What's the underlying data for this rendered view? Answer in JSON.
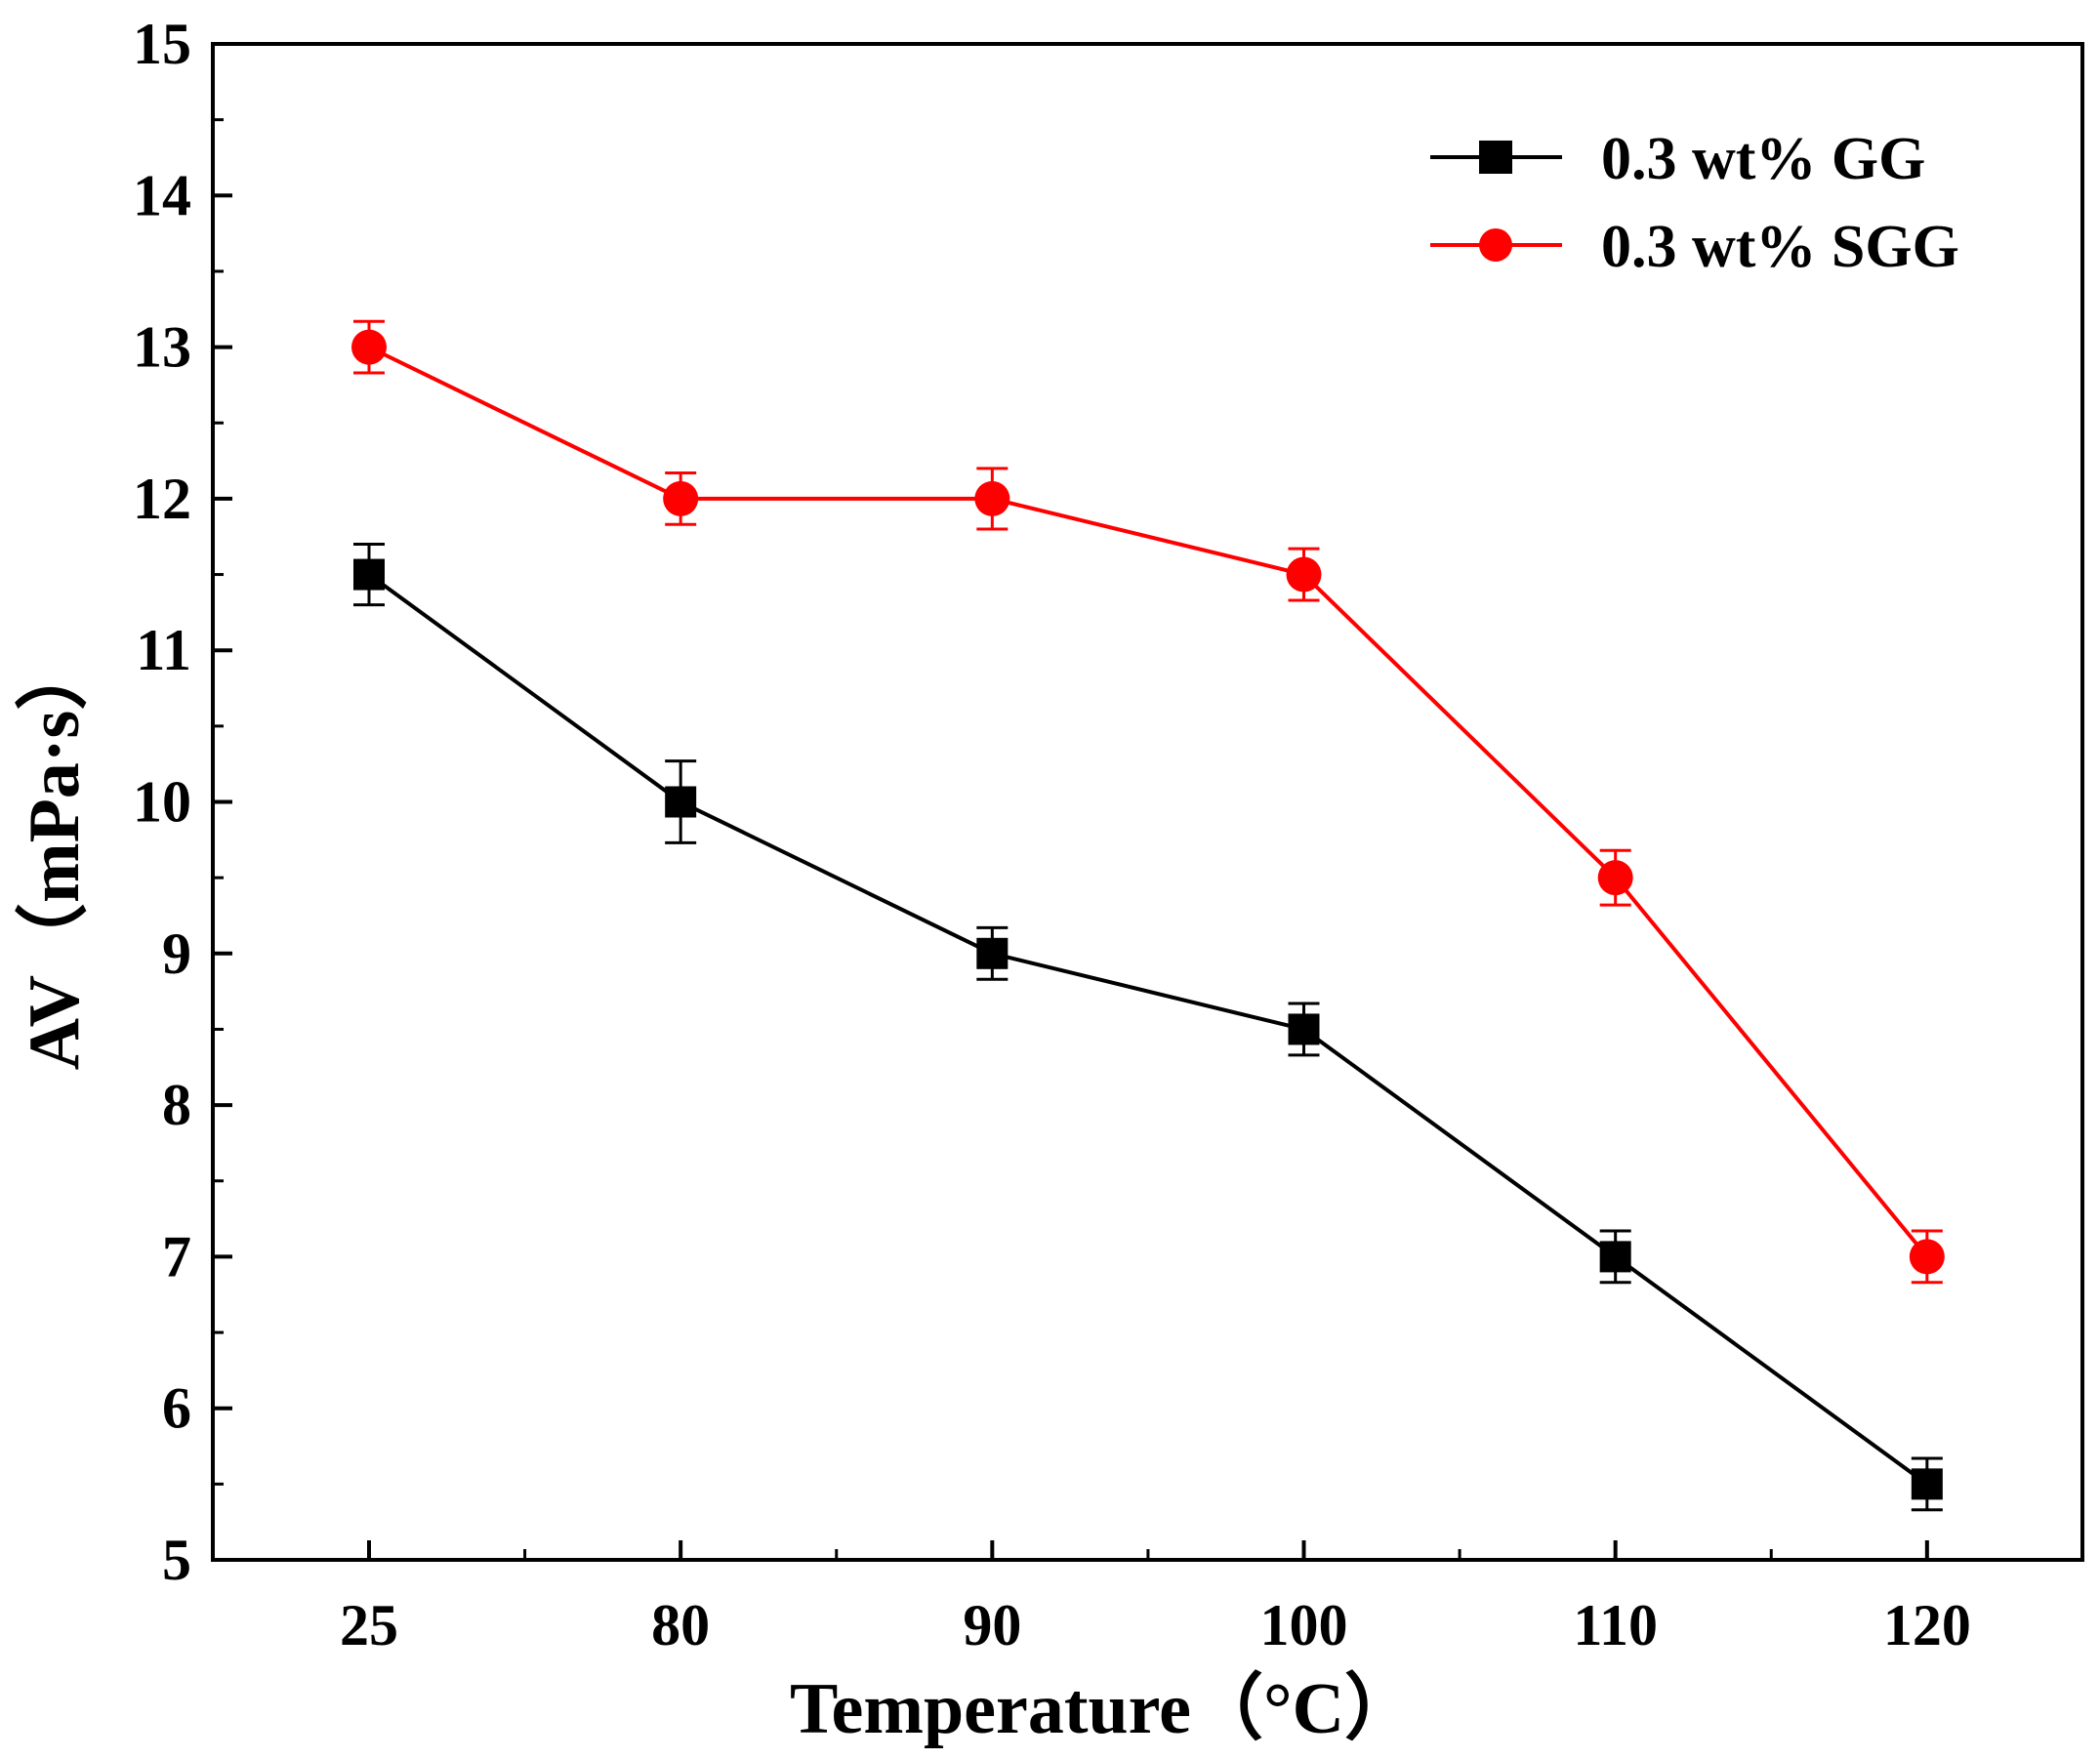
{
  "chart_data": {
    "type": "line",
    "title": "",
    "xlabel": "Temperature（°C）",
    "ylabel": "AV（mPa·s）",
    "categories": [
      "25",
      "80",
      "90",
      "100",
      "110",
      "120"
    ],
    "ylim": [
      5,
      15
    ],
    "yticks": [
      "5",
      "6",
      "7",
      "8",
      "9",
      "10",
      "11",
      "12",
      "13",
      "14",
      "15"
    ],
    "grid": false,
    "legend_position": "top-right",
    "series": [
      {
        "name": "0.3 wt% GG",
        "color": "#000000",
        "marker": "square",
        "values": [
          11.5,
          10.0,
          9.0,
          8.5,
          7.0,
          5.5
        ],
        "errors": [
          0.2,
          0.27,
          0.17,
          0.17,
          0.17,
          0.17
        ]
      },
      {
        "name": "0.3 wt% SGG",
        "color": "#ff0000",
        "marker": "circle",
        "values": [
          13.0,
          12.0,
          12.0,
          11.5,
          9.5,
          7.0
        ],
        "errors": [
          0.17,
          0.17,
          0.2,
          0.17,
          0.18,
          0.17
        ]
      }
    ]
  }
}
